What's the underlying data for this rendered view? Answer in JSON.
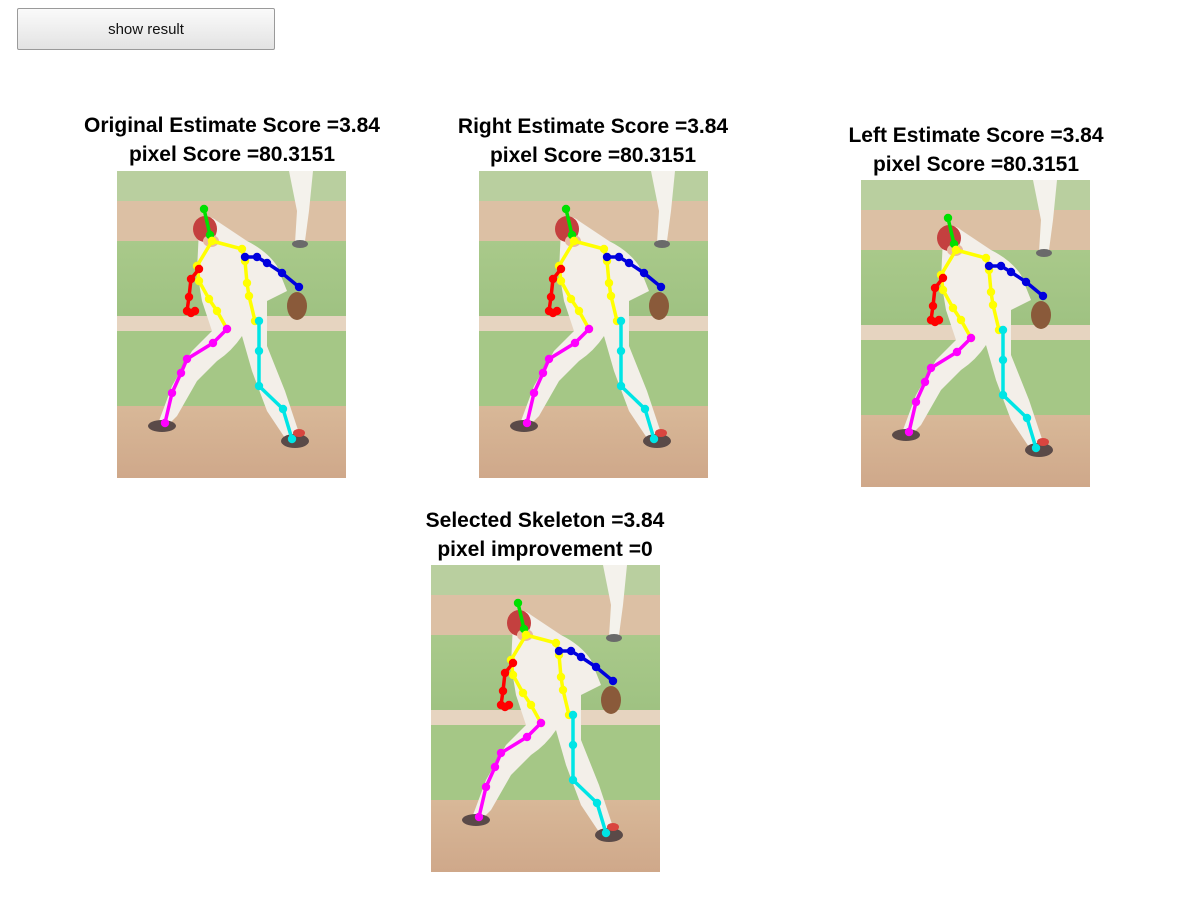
{
  "toolbar": {
    "show_result_label": "show result"
  },
  "panels": [
    {
      "id": "original",
      "title_line1": "Original Estimate Score =3.84",
      "title_line2": "pixel Score =80.3151"
    },
    {
      "id": "right",
      "title_line1": "Right Estimate Score =3.84",
      "title_line2": "pixel Score =80.3151"
    },
    {
      "id": "left",
      "title_line1": "Left Estimate Score =3.84",
      "title_line2": "pixel Score =80.3151"
    },
    {
      "id": "selected",
      "title_line1": "Selected Skeleton =3.84",
      "title_line2": "pixel improvement =0"
    }
  ],
  "skeleton_colors": {
    "head": "#00e000",
    "torso": "#ffff00",
    "right_arm": "#ff0000",
    "left_arm": "#0000dd",
    "right_leg": "#ff00ff",
    "left_leg": "#00e5e5"
  }
}
